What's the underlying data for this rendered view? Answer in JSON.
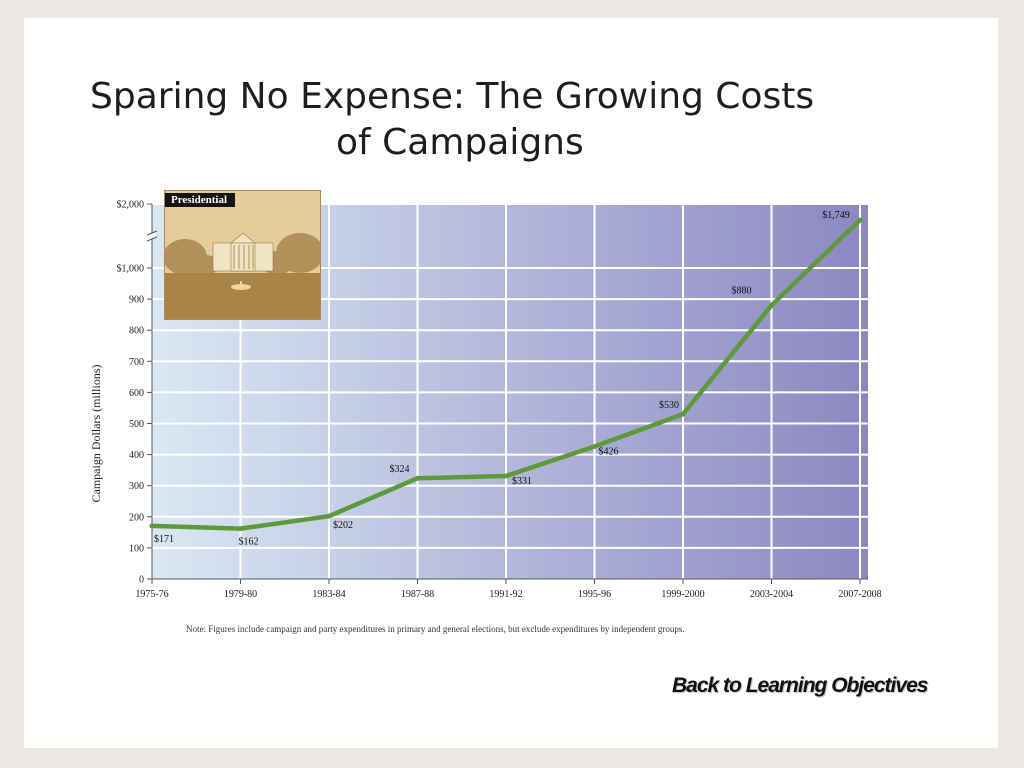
{
  "slide": {
    "title_line1": "Sparing No Expense: The Growing Costs",
    "title_line2": "of Campaigns",
    "back_link": "Back to Learning Objectives"
  },
  "inset": {
    "label": "Presidential",
    "image_icon": "white-house-photo"
  },
  "colors": {
    "line": "#5e9a3a",
    "plot_bg_start": "#d9e8f3",
    "plot_bg_end": "#8c87c2",
    "grid": "#ffffff",
    "text": "#222222"
  },
  "chart_data": {
    "type": "line",
    "title": "Presidential",
    "xlabel": "",
    "ylabel": "Campaign Dollars (millions)",
    "categories": [
      "1975-76",
      "1979-80",
      "1983-84",
      "1987-88",
      "1991-92",
      "1995-96",
      "1999-2000",
      "2003-2004",
      "2007-2008"
    ],
    "values": [
      171,
      162,
      202,
      324,
      331,
      426,
      530,
      880,
      1749
    ],
    "data_labels": [
      "$171",
      "$162",
      "$202",
      "$324",
      "$331",
      "$426",
      "$530",
      "$880",
      "$1,749"
    ],
    "y_ticks": [
      0,
      100,
      200,
      300,
      400,
      500,
      600,
      700,
      800,
      900,
      1000,
      2000
    ],
    "y_tick_labels": [
      "0",
      "100",
      "200",
      "300",
      "400",
      "500",
      "600",
      "700",
      "800",
      "900",
      "$1,000",
      "$2,000"
    ],
    "ylim": [
      0,
      2000
    ],
    "axis_break_between": [
      1000,
      2000
    ],
    "grid": true,
    "note": "Note: Figures include campaign and party expenditures in primary and general elections, but exclude expenditures by independent groups."
  }
}
